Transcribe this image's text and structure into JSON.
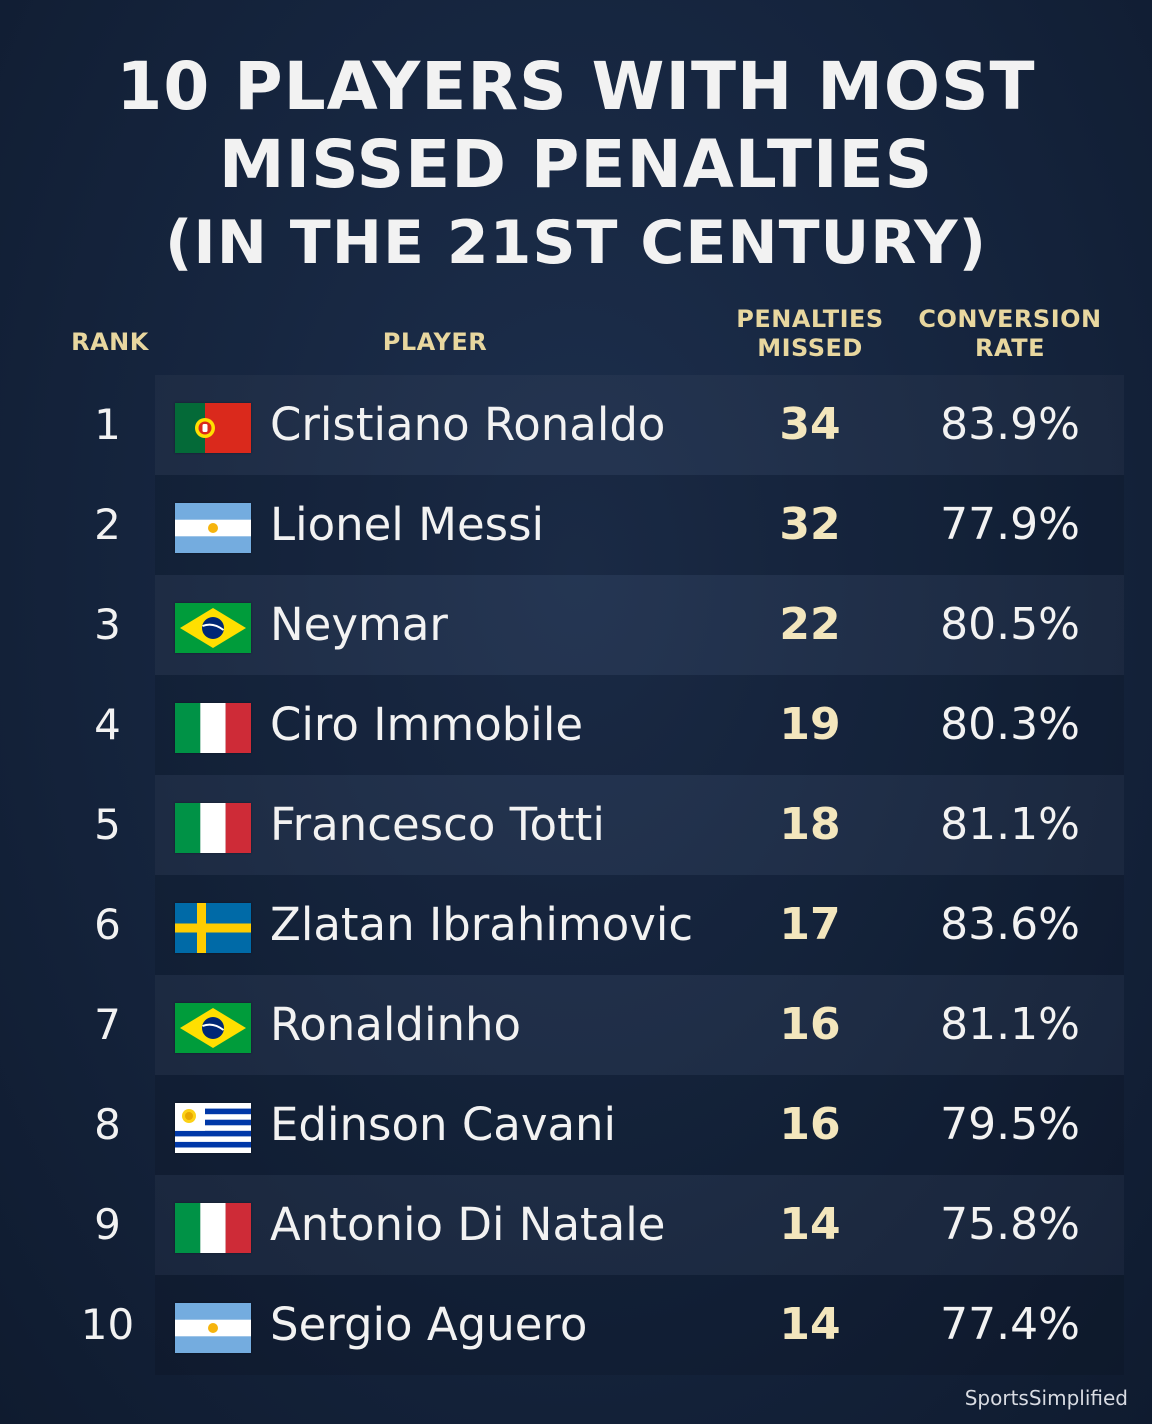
{
  "title": {
    "line1": "10 PLAYERS WITH MOST",
    "line2": "MISSED PENALTIES",
    "line3": "(IN THE 21ST CENTURY)"
  },
  "headers": {
    "rank": "RANK",
    "player": "PLAYER",
    "penalties_missed_1": "PENALTIES",
    "penalties_missed_2": "MISSED",
    "conversion_rate_1": "CONVERSION",
    "conversion_rate_2": "RATE"
  },
  "rows": [
    {
      "rank": "1",
      "flag": "portugal-flag-icon",
      "player": "Cristiano Ronaldo",
      "missed": "34",
      "conversion": "83.9%"
    },
    {
      "rank": "2",
      "flag": "argentina-flag-icon",
      "player": "Lionel Messi",
      "missed": "32",
      "conversion": "77.9%"
    },
    {
      "rank": "3",
      "flag": "brazil-flag-icon",
      "player": "Neymar",
      "missed": "22",
      "conversion": "80.5%"
    },
    {
      "rank": "4",
      "flag": "italy-flag-icon",
      "player": "Ciro Immobile",
      "missed": "19",
      "conversion": "80.3%"
    },
    {
      "rank": "5",
      "flag": "italy-flag-icon",
      "player": "Francesco Totti",
      "missed": "18",
      "conversion": "81.1%"
    },
    {
      "rank": "6",
      "flag": "sweden-flag-icon",
      "player": "Zlatan Ibrahimovic",
      "missed": "17",
      "conversion": "83.6%"
    },
    {
      "rank": "7",
      "flag": "brazil-flag-icon",
      "player": "Ronaldinho",
      "missed": "16",
      "conversion": "81.1%"
    },
    {
      "rank": "8",
      "flag": "uruguay-flag-icon",
      "player": "Edinson Cavani",
      "missed": "16",
      "conversion": "79.5%"
    },
    {
      "rank": "9",
      "flag": "italy-flag-icon",
      "player": "Antonio Di Natale",
      "missed": "14",
      "conversion": "75.8%"
    },
    {
      "rank": "10",
      "flag": "argentina-flag-icon",
      "player": "Sergio Aguero",
      "missed": "14",
      "conversion": "77.4%"
    }
  ],
  "brand": "SportsSimplified",
  "colors": {
    "background": "#15243d",
    "header_text": "#e8d79f",
    "missed_text": "#f3e6bd",
    "body_text": "#f2f2f2"
  }
}
